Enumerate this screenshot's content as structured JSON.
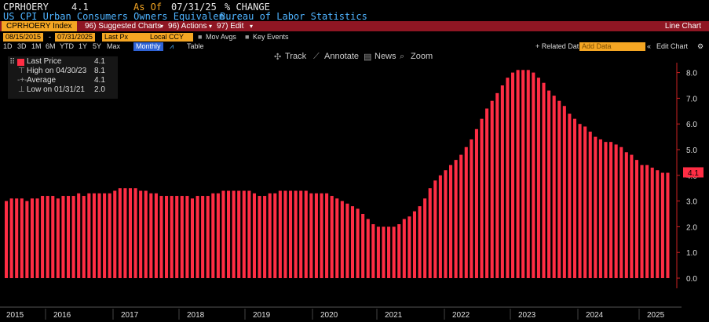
{
  "header": {
    "ticker": "CPRHOERY",
    "last": "4.1",
    "as_of_label": "As Of",
    "as_of_date": "07/31/25",
    "change_label": "% CHANGE",
    "description": "US CPI Urban Consumers Owners Equivalen...",
    "source": "Bureau of Labor Statistics"
  },
  "toolbar": {
    "index_label": "CPRHOERY Index",
    "suggested": "96) Suggested Charts",
    "actions": "96) Actions",
    "edit": "97) Edit",
    "chart_type": "Line Chart",
    "date_from": "08/15/2015",
    "date_to": "07/31/2025",
    "field": "Last Px",
    "currency": "Local CCY",
    "mov_avgs": "Mov Avgs",
    "key_events": "Key Events",
    "ranges": [
      "1D",
      "3D",
      "1M",
      "6M",
      "YTD",
      "1Y",
      "5Y",
      "Max"
    ],
    "frequency": "Monthly",
    "table_label": "Table",
    "related_data": "+ Related Dat",
    "add_data_placeholder": "Add Data",
    "edit_chart": "Edit Chart"
  },
  "legend": {
    "last_price_label": "Last Price",
    "last_price_value": "4.1",
    "high_label": "High on 04/30/23",
    "high_value": "8.1",
    "average_label": "Average",
    "average_value": "4.1",
    "low_label": "Low on 01/31/21",
    "low_value": "2.0"
  },
  "tools": {
    "track": "Track",
    "annotate": "Annotate",
    "news": "News",
    "zoom": "Zoom"
  },
  "colors": {
    "bar": "#ff2d44",
    "header_bar": "#8f1623",
    "orange": "#f5a623",
    "link": "#4fb3ff"
  },
  "chart_data": {
    "type": "bar",
    "title": "CPRHOERY Index",
    "ylabel": "% CHANGE",
    "ylim": [
      -0.4,
      8.8
    ],
    "y_ticks": [
      "0.0",
      "1.0",
      "2.0",
      "3.0",
      "4.0",
      "5.0",
      "6.0",
      "7.0",
      "8.0"
    ],
    "last_value_label": "4.1",
    "x_tick_labels": [
      "2015",
      "2016",
      "2017",
      "2018",
      "2019",
      "2020",
      "2021",
      "2022",
      "2023",
      "2024",
      "2025"
    ],
    "values": [
      3.0,
      3.1,
      3.1,
      3.1,
      3.0,
      3.1,
      3.1,
      3.2,
      3.2,
      3.2,
      3.1,
      3.2,
      3.2,
      3.2,
      3.3,
      3.2,
      3.3,
      3.3,
      3.3,
      3.3,
      3.3,
      3.4,
      3.5,
      3.5,
      3.5,
      3.5,
      3.4,
      3.4,
      3.3,
      3.3,
      3.2,
      3.2,
      3.2,
      3.2,
      3.2,
      3.2,
      3.1,
      3.2,
      3.2,
      3.2,
      3.3,
      3.3,
      3.4,
      3.4,
      3.4,
      3.4,
      3.4,
      3.4,
      3.3,
      3.2,
      3.2,
      3.3,
      3.3,
      3.4,
      3.4,
      3.4,
      3.4,
      3.4,
      3.4,
      3.3,
      3.3,
      3.3,
      3.3,
      3.2,
      3.1,
      3.0,
      2.9,
      2.8,
      2.7,
      2.5,
      2.3,
      2.1,
      2.0,
      2.0,
      2.0,
      2.0,
      2.1,
      2.3,
      2.4,
      2.6,
      2.8,
      3.1,
      3.5,
      3.8,
      4.0,
      4.2,
      4.4,
      4.6,
      4.8,
      5.1,
      5.4,
      5.8,
      6.2,
      6.6,
      6.9,
      7.2,
      7.5,
      7.8,
      8.0,
      8.1,
      8.1,
      8.1,
      8.0,
      7.8,
      7.6,
      7.3,
      7.1,
      6.9,
      6.7,
      6.4,
      6.2,
      6.0,
      5.9,
      5.7,
      5.5,
      5.4,
      5.3,
      5.3,
      5.2,
      5.1,
      4.9,
      4.8,
      4.6,
      4.4,
      4.4,
      4.3,
      4.2,
      4.1,
      4.1
    ]
  }
}
